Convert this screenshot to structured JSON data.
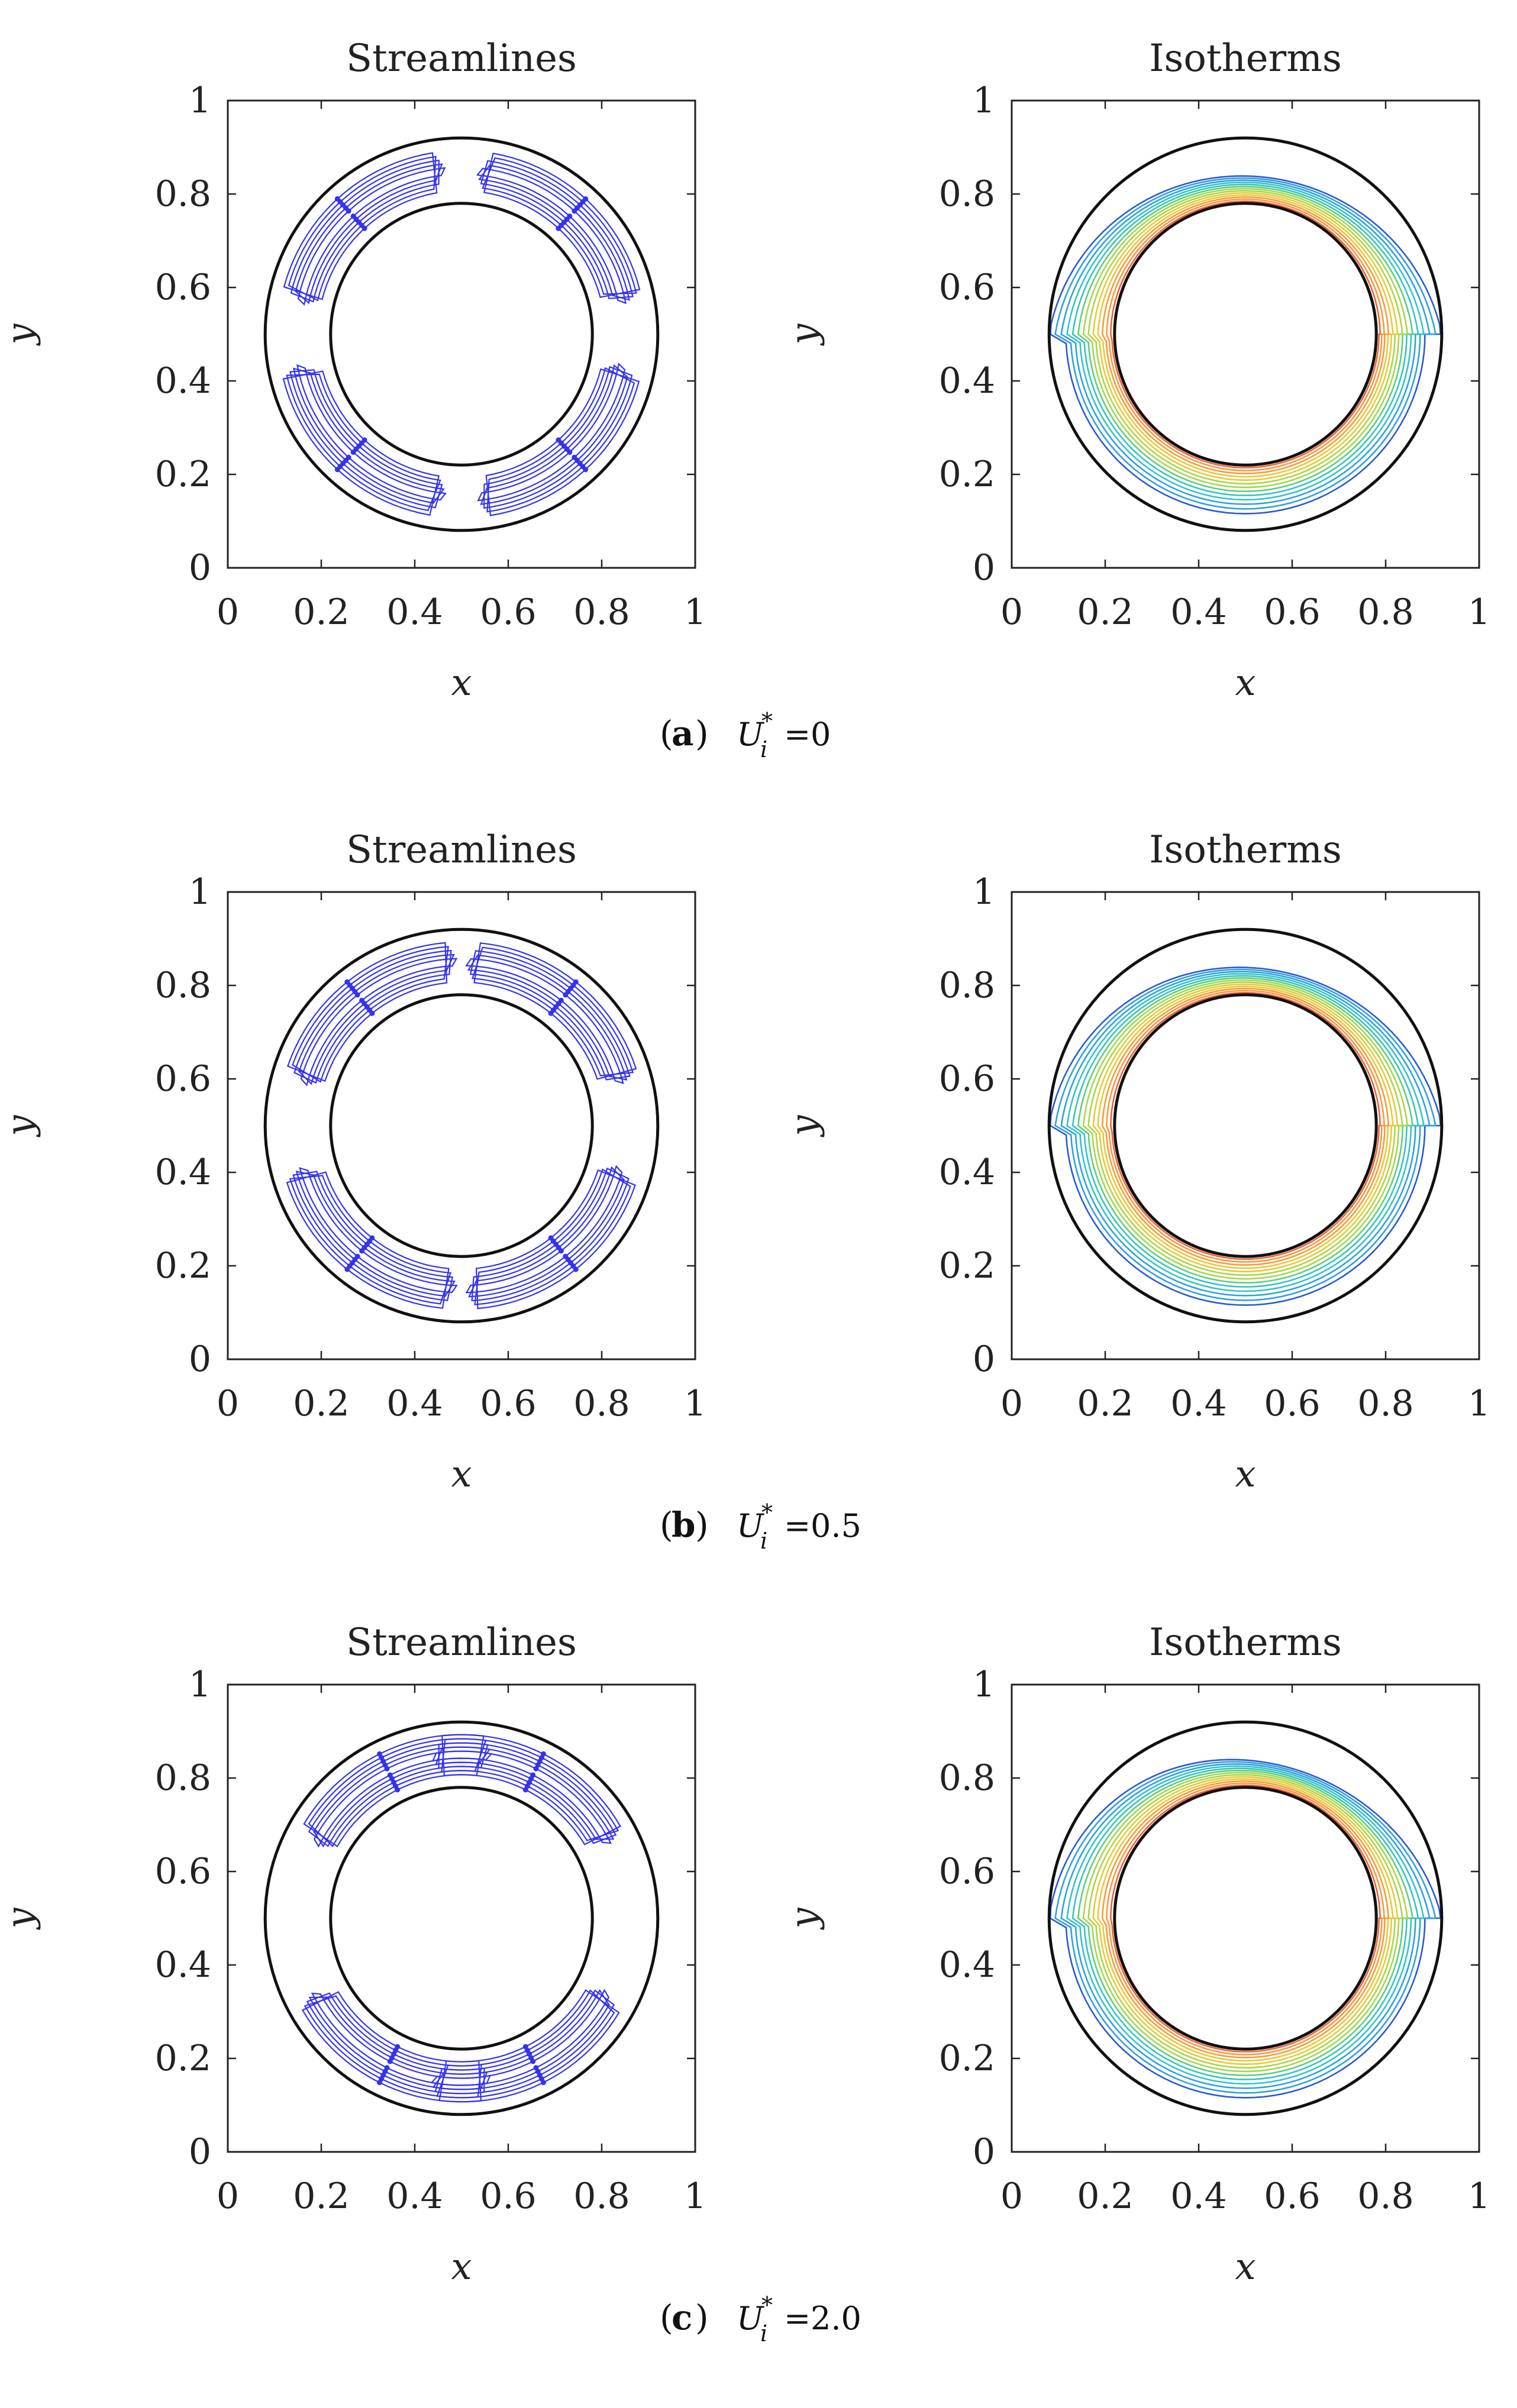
{
  "chart_data": {
    "type": "contour",
    "panels": [
      {
        "caption_letter": "a",
        "caption_symbol": "U",
        "caption_subscript": "i",
        "caption_superscript": "*",
        "caption_equals": "=",
        "caption_value": "0",
        "Ui_star": 0,
        "plots": [
          {
            "kind": "streamlines",
            "title": "Streamlines",
            "xlabel": "x",
            "ylabel": "y",
            "xlim": [
              0,
              1
            ],
            "ylim": [
              0,
              1
            ],
            "xticks": [
              "0",
              "0.2",
              "0.4",
              "0.6",
              "0.8",
              "1"
            ],
            "yticks": [
              "0",
              "0.2",
              "0.4",
              "0.6",
              "0.8",
              "1"
            ],
            "center": [
              0.5,
              0.5
            ],
            "outer_radius": 0.42,
            "inner_radius": 0.28,
            "line_color": "#3333ee"
          },
          {
            "kind": "isotherms",
            "title": "Isotherms",
            "xlabel": "x",
            "ylabel": "y",
            "xlim": [
              0,
              1
            ],
            "ylim": [
              0,
              1
            ],
            "xticks": [
              "0",
              "0.2",
              "0.4",
              "0.6",
              "0.8",
              "1"
            ],
            "yticks": [
              "0",
              "0.2",
              "0.4",
              "0.6",
              "0.8",
              "1"
            ],
            "center": [
              0.5,
              0.5
            ],
            "outer_radius": 0.42,
            "inner_radius": 0.28,
            "levels": 13,
            "colormap": [
              "#2b59d6",
              "#2fa0e0",
              "#36c3c0",
              "#5ccf7a",
              "#a7d64a",
              "#e6c93a",
              "#f79a3c",
              "#f0603a"
            ]
          }
        ]
      },
      {
        "caption_letter": "b",
        "caption_symbol": "U",
        "caption_subscript": "i",
        "caption_superscript": "*",
        "caption_equals": "=",
        "caption_value": "0.5",
        "Ui_star": 0.5,
        "plots": [
          {
            "kind": "streamlines",
            "title": "Streamlines",
            "xlabel": "x",
            "ylabel": "y",
            "xlim": [
              0,
              1
            ],
            "ylim": [
              0,
              1
            ],
            "xticks": [
              "0",
              "0.2",
              "0.4",
              "0.6",
              "0.8",
              "1"
            ],
            "yticks": [
              "0",
              "0.2",
              "0.4",
              "0.6",
              "0.8",
              "1"
            ],
            "center": [
              0.5,
              0.5
            ],
            "outer_radius": 0.42,
            "inner_radius": 0.28,
            "line_color": "#3333ee"
          },
          {
            "kind": "isotherms",
            "title": "Isotherms",
            "xlabel": "x",
            "ylabel": "y",
            "xlim": [
              0,
              1
            ],
            "ylim": [
              0,
              1
            ],
            "xticks": [
              "0",
              "0.2",
              "0.4",
              "0.6",
              "0.8",
              "1"
            ],
            "yticks": [
              "0",
              "0.2",
              "0.4",
              "0.6",
              "0.8",
              "1"
            ],
            "center": [
              0.5,
              0.5
            ],
            "outer_radius": 0.42,
            "inner_radius": 0.28,
            "levels": 13,
            "colormap": [
              "#2b59d6",
              "#2fa0e0",
              "#36c3c0",
              "#5ccf7a",
              "#a7d64a",
              "#e6c93a",
              "#f79a3c",
              "#f0603a"
            ]
          }
        ]
      },
      {
        "caption_letter": "c",
        "caption_symbol": "U",
        "caption_subscript": "i",
        "caption_superscript": "*",
        "caption_equals": "=",
        "caption_value": "2.0",
        "Ui_star": 2.0,
        "plots": [
          {
            "kind": "streamlines",
            "title": "Streamlines",
            "xlabel": "x",
            "ylabel": "y",
            "xlim": [
              0,
              1
            ],
            "ylim": [
              0,
              1
            ],
            "xticks": [
              "0",
              "0.2",
              "0.4",
              "0.6",
              "0.8",
              "1"
            ],
            "yticks": [
              "0",
              "0.2",
              "0.4",
              "0.6",
              "0.8",
              "1"
            ],
            "center": [
              0.5,
              0.5
            ],
            "outer_radius": 0.42,
            "inner_radius": 0.28,
            "line_color": "#3333ee"
          },
          {
            "kind": "isotherms",
            "title": "Isotherms",
            "xlabel": "x",
            "ylabel": "y",
            "xlim": [
              0,
              1
            ],
            "ylim": [
              0,
              1
            ],
            "xticks": [
              "0",
              "0.2",
              "0.4",
              "0.6",
              "0.8",
              "1"
            ],
            "yticks": [
              "0",
              "0.2",
              "0.4",
              "0.6",
              "0.8",
              "1"
            ],
            "center": [
              0.5,
              0.5
            ],
            "outer_radius": 0.42,
            "inner_radius": 0.28,
            "levels": 13,
            "colormap": [
              "#2b59d6",
              "#2fa0e0",
              "#36c3c0",
              "#5ccf7a",
              "#a7d64a",
              "#e6c93a",
              "#f79a3c",
              "#f0603a"
            ]
          }
        ]
      }
    ]
  }
}
